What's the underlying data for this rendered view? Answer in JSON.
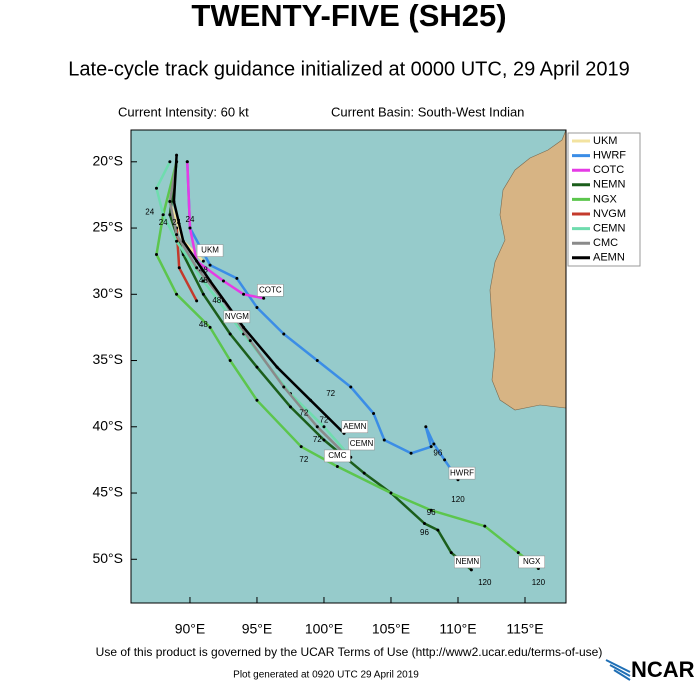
{
  "chart_data": {
    "type": "track",
    "title": "TWENTY-FIVE (SH25)",
    "subtitle": "Late-cycle track guidance initialized at 0000 UTC, 29 April 2019",
    "intensity": "Current Intensity: 60 kt",
    "basin": "Current Basin: South-West Indian",
    "footer": "Use of this product is governed by the UCAR Terms of Use (http://www2.ucar.edu/terms-of-use)",
    "generated": "Plot generated at 0920 UTC  29 April 2019",
    "logo": "NCAR",
    "xlim": [
      85.6,
      118.06
    ],
    "ylim": [
      -53.3,
      -17.6
    ],
    "xticks": [
      {
        "value": 90,
        "label": "90°E"
      },
      {
        "value": 95,
        "label": "95°E"
      },
      {
        "value": 100,
        "label": "100°E"
      },
      {
        "value": 105,
        "label": "105°E"
      },
      {
        "value": 110,
        "label": "110°E"
      },
      {
        "value": 115,
        "label": "115°E"
      }
    ],
    "yticks": [
      {
        "value": -20,
        "label": "20°S"
      },
      {
        "value": -25,
        "label": "25°S"
      },
      {
        "value": -30,
        "label": "30°S"
      },
      {
        "value": -35,
        "label": "35°S"
      },
      {
        "value": -40,
        "label": "40°S"
      },
      {
        "value": -45,
        "label": "45°S"
      },
      {
        "value": -50,
        "label": "50°S"
      }
    ],
    "grid": false,
    "series": [
      {
        "name": "UKM",
        "color": "#f3e3a0",
        "x": [
          89,
          88.5,
          89.5,
          91
        ],
        "y": [
          -20,
          -23,
          -26,
          -27.5
        ],
        "label_at": [
          91.5,
          -26.7
        ]
      },
      {
        "name": "HWRF",
        "color": "#3b8de6",
        "x": [
          89.8,
          90,
          91.5,
          93.5,
          95,
          97,
          99.5,
          102,
          103.7,
          104.5,
          106.5,
          108,
          107.6,
          108.2,
          109,
          110
        ],
        "y": [
          -20,
          -25,
          -27.8,
          -28.8,
          -31,
          -33,
          -35,
          -37,
          -39,
          -41,
          -42,
          -41.5,
          -40,
          -41.3,
          -42.5,
          -44
        ],
        "label_at": [
          110.3,
          -43.5
        ]
      },
      {
        "name": "COTC",
        "color": "#e53be5",
        "x": [
          89.8,
          90,
          90.5,
          92.5,
          94,
          95.5
        ],
        "y": [
          -20,
          -25,
          -27.5,
          -29,
          -30,
          -30.3
        ],
        "label_at": [
          96,
          -29.7
        ]
      },
      {
        "name": "NEMN",
        "color": "#1b5e1b",
        "x": [
          89,
          88.5,
          89.5,
          91,
          93,
          95,
          97.5,
          100,
          103,
          105,
          107.5,
          108.5,
          109.5,
          111
        ],
        "y": [
          -20,
          -24,
          -27,
          -30,
          -33,
          -35.5,
          -38.5,
          -41,
          -43.5,
          -45,
          -47.3,
          -47.8,
          -49.5,
          -50.8
        ],
        "label_at": [
          110.7,
          -50.2
        ]
      },
      {
        "name": "NGX",
        "color": "#5cc64d",
        "x": [
          89,
          88,
          87.5,
          89,
          91.5,
          93,
          95,
          98.3,
          101,
          105,
          108,
          112,
          114.5,
          116
        ],
        "y": [
          -20,
          -24,
          -27,
          -30,
          -32.5,
          -35,
          -38,
          -41.5,
          -43,
          -45,
          -46.3,
          -47.5,
          -49.5,
          -50.7
        ],
        "label_at": [
          115.5,
          -50.2
        ]
      },
      {
        "name": "NVGM",
        "color": "#c43a2c",
        "x": [
          89,
          89.2,
          90.5
        ],
        "y": [
          -25,
          -28,
          -30.5
        ],
        "label_at": [
          93.5,
          -31.7
        ]
      },
      {
        "name": "CEMN",
        "color": "#6fdcae",
        "x": [
          88.5,
          87.5,
          88,
          89,
          91,
          94,
          97.5,
          100,
          102
        ],
        "y": [
          -20,
          -22,
          -24,
          -26,
          -29,
          -33,
          -37.5,
          -40,
          -42.3
        ],
        "label_at": [
          102.8,
          -41.3
        ]
      },
      {
        "name": "CMC",
        "color": "#8a8a8a",
        "x": [
          89,
          88.5,
          89,
          90.5,
          92.5,
          94.5,
          97,
          99.5,
          101.5
        ],
        "y": [
          -20,
          -23,
          -25.5,
          -28,
          -30.5,
          -33.5,
          -37,
          -40,
          -42
        ],
        "label_at": [
          101,
          -42.2
        ]
      },
      {
        "name": "AEMN",
        "color": "#000000",
        "x": [
          89,
          88.8,
          89.5,
          91.5,
          94,
          96.5,
          99,
          101.5
        ],
        "y": [
          -19.5,
          -23,
          -26,
          -29,
          -32.5,
          -35.5,
          -38,
          -40.5
        ],
        "label_at": [
          102.3,
          -40
        ]
      }
    ],
    "hour_labels": [
      {
        "text": "24",
        "lon": 87,
        "lat": -23.8
      },
      {
        "text": "24",
        "lon": 88,
        "lat": -24.6
      },
      {
        "text": "24",
        "lon": 89,
        "lat": -24.6
      },
      {
        "text": "24",
        "lon": 90,
        "lat": -24.4
      },
      {
        "text": "48",
        "lon": 91,
        "lat": -28.2
      },
      {
        "text": "48",
        "lon": 91,
        "lat": -29
      },
      {
        "text": "48",
        "lon": 92,
        "lat": -30.5
      },
      {
        "text": "48",
        "lon": 91,
        "lat": -32.3
      },
      {
        "text": "72",
        "lon": 100.5,
        "lat": -37.5
      },
      {
        "text": "72",
        "lon": 98.5,
        "lat": -39
      },
      {
        "text": "72",
        "lon": 100,
        "lat": -39.5
      },
      {
        "text": "72",
        "lon": 99.5,
        "lat": -41
      },
      {
        "text": "72",
        "lon": 98.5,
        "lat": -42.5
      },
      {
        "text": "96",
        "lon": 108.5,
        "lat": -42
      },
      {
        "text": "96",
        "lon": 108,
        "lat": -46.5
      },
      {
        "text": "96",
        "lon": 107.5,
        "lat": -48
      },
      {
        "text": "120",
        "lon": 110,
        "lat": -45.5
      },
      {
        "text": "120",
        "lon": 112,
        "lat": -51.8
      },
      {
        "text": "120",
        "lon": 116,
        "lat": -51.8
      }
    ]
  }
}
